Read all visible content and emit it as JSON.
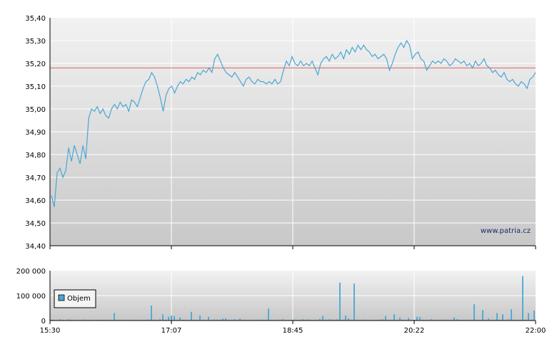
{
  "chart_data": [
    {
      "type": "line",
      "name": "price-chart",
      "ylim": [
        34.4,
        35.4
      ],
      "yticks": [
        "35,40",
        "35,30",
        "35,20",
        "35,10",
        "35,00",
        "34,90",
        "34,80",
        "34,70",
        "34,60",
        "34,50",
        "34,40"
      ],
      "xticks": [
        "15:30",
        "17:07",
        "18:45",
        "20:22",
        "22:00"
      ],
      "reference_line": 35.18,
      "watermark": "www.patria.cz",
      "grid": true,
      "colors": {
        "line": "#4aa6d4",
        "reference": "#e06060",
        "bg_top": "#f2f2f2",
        "bg_bottom": "#c8c8c8",
        "grid": "#ffffff"
      },
      "series": [
        {
          "values": [
            34.62,
            34.57,
            34.72,
            34.74,
            34.7,
            34.73,
            34.83,
            34.77,
            34.84,
            34.8,
            34.76,
            34.84,
            34.78,
            34.96,
            35.0,
            34.99,
            35.01,
            34.98,
            35.0,
            34.97,
            34.96,
            35.0,
            35.02,
            35.0,
            35.03,
            35.01,
            35.02,
            34.99,
            35.04,
            35.03,
            35.01,
            35.05,
            35.09,
            35.12,
            35.13,
            35.16,
            35.14,
            35.1,
            35.05,
            34.99,
            35.06,
            35.09,
            35.1,
            35.07,
            35.1,
            35.12,
            35.11,
            35.13,
            35.12,
            35.14,
            35.13,
            35.16,
            35.15,
            35.17,
            35.16,
            35.18,
            35.16,
            35.22,
            35.24,
            35.21,
            35.18,
            35.16,
            35.15,
            35.14,
            35.16,
            35.14,
            35.12,
            35.1,
            35.13,
            35.14,
            35.12,
            35.11,
            35.13,
            35.12,
            35.12,
            35.11,
            35.12,
            35.11,
            35.13,
            35.11,
            35.12,
            35.17,
            35.21,
            35.19,
            35.23,
            35.2,
            35.19,
            35.21,
            35.19,
            35.2,
            35.19,
            35.21,
            35.18,
            35.15,
            35.2,
            35.22,
            35.23,
            35.21,
            35.24,
            35.22,
            35.23,
            35.25,
            35.22,
            35.26,
            35.24,
            35.27,
            35.25,
            35.28,
            35.26,
            35.28,
            35.26,
            35.25,
            35.23,
            35.24,
            35.22,
            35.23,
            35.24,
            35.22,
            35.17,
            35.2,
            35.24,
            35.27,
            35.29,
            35.27,
            35.3,
            35.28,
            35.22,
            35.24,
            35.25,
            35.22,
            35.21,
            35.17,
            35.19,
            35.21,
            35.2,
            35.21,
            35.2,
            35.22,
            35.21,
            35.19,
            35.2,
            35.22,
            35.21,
            35.2,
            35.21,
            35.19,
            35.2,
            35.18,
            35.21,
            35.19,
            35.2,
            35.22,
            35.19,
            35.18,
            35.16,
            35.17,
            35.15,
            35.14,
            35.16,
            35.13,
            35.12,
            35.13,
            35.11,
            35.1,
            35.12,
            35.11,
            35.09,
            35.13,
            35.14,
            35.16
          ]
        }
      ]
    },
    {
      "type": "bar",
      "name": "volume-chart",
      "ylim": [
        0,
        200000
      ],
      "yticks": [
        "200 000",
        "100 000",
        "0"
      ],
      "xticks": [
        "15:30",
        "17:07",
        "18:45",
        "20:22",
        "22:00"
      ],
      "legend": "Objem",
      "legend_position": "left",
      "colors": {
        "bar": "#4aa6d4",
        "bg_top": "#f2f2f2",
        "bg_bottom": "#c8c8c8",
        "grid": "#ffffff"
      },
      "series": [
        {
          "name": "Objem",
          "values": [
            4000,
            3000,
            2500,
            5000,
            3000,
            2000,
            4500,
            3000,
            2500,
            3000,
            2000,
            3500,
            4000,
            3000,
            2500,
            2000,
            3000,
            2500,
            3000,
            2000,
            3500,
            2500,
            30000,
            3000,
            2000,
            2500,
            3500,
            3000,
            2500,
            3000,
            3000,
            2500,
            2000,
            3000,
            4000,
            60000,
            3000,
            2500,
            5000,
            25000,
            3000,
            15000,
            20000,
            18000,
            3000,
            12000,
            2500,
            3000,
            2000,
            35000,
            3000,
            2500,
            20000,
            3000,
            2000,
            15000,
            2500,
            4000,
            3000,
            3500,
            8000,
            9000,
            3000,
            2500,
            5000,
            3000,
            8000,
            3000,
            2500,
            3000,
            3000,
            2500,
            3000,
            3500,
            3000,
            3500,
            48000,
            3000,
            2500,
            3000,
            3500,
            5000,
            3000,
            2500,
            3000,
            4000,
            2500,
            3000,
            5000,
            3000,
            4500,
            3000,
            2500,
            3000,
            6000,
            18000,
            3000,
            4000,
            5000,
            3000,
            4500,
            152000,
            3000,
            20000,
            8000,
            3000,
            148000,
            3000,
            2500,
            3000,
            4000,
            2500,
            3000,
            2500,
            3000,
            3500,
            5000,
            18000,
            3000,
            2500,
            25000,
            3000,
            12000,
            3500,
            2500,
            10000,
            3000,
            2500,
            15000,
            14000,
            3000,
            2500,
            3000,
            5000,
            2500,
            3000,
            2500,
            3000,
            4000,
            2500,
            3000,
            12000,
            5000,
            3000,
            2500,
            3500,
            2500,
            3000,
            65000,
            3000,
            2500,
            42000,
            3000,
            8000,
            3000,
            2500,
            30000,
            3000,
            25000,
            2500,
            5000,
            45000,
            3000,
            2500,
            3000,
            178000,
            3000,
            30000,
            3000,
            40000
          ]
        }
      ]
    }
  ]
}
